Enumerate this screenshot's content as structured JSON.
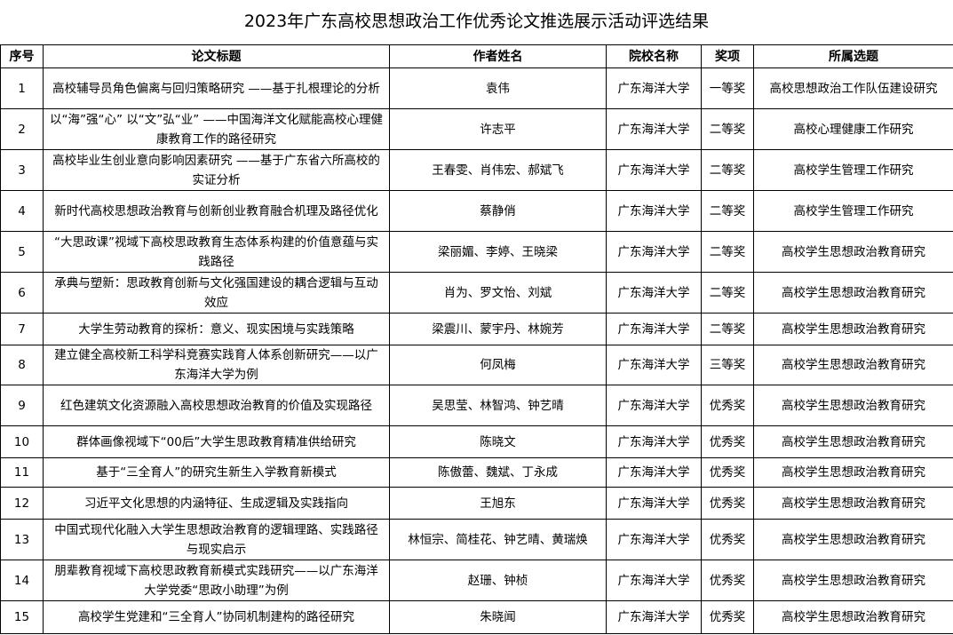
{
  "title": "2023年广东高校思想政治工作优秀论文推选展示活动评选结果",
  "headers": [
    "序号",
    "论文标题",
    "作者姓名",
    "院校名称",
    "奖项",
    "所属选题"
  ],
  "rows": [
    [
      "1",
      "高校辅导员角色偏离与回归策略研究 ——基于扎根理论的分析",
      "袁伟",
      "广东海洋大学",
      "一等奖",
      "高校思想政治工作队伍建设研究"
    ],
    [
      "2",
      "以“海”强“心” 以“文”弘“业” ——中国海洋文化赋能高校心理健康教育工作的路径研究",
      "许志平",
      "广东海洋大学",
      "二等奖",
      "高校心理健康工作研究"
    ],
    [
      "3",
      "高校毕业生创业意向影响因素研究 ——基于广东省六所高校的实证分析",
      "王春雯、肖伟宏、郝斌飞",
      "广东海洋大学",
      "二等奖",
      "高校学生管理工作研究"
    ],
    [
      "4",
      "新时代高校思想政治教育与创新创业教育融合机理及路径优化",
      "蔡静俏",
      "广东海洋大学",
      "二等奖",
      "高校学生管理工作研究"
    ],
    [
      "5",
      "“大思政课”视域下高校思政教育生态体系构建的价值意蕴与实践路径",
      "梁丽媚、李婷、王晓梁",
      "广东海洋大学",
      "二等奖",
      "高校学生思想政治教育研究"
    ],
    [
      "6",
      "承典与塑新：思政教育创新与文化强国建设的耦合逻辑与互动效应",
      "肖为、罗文怡、刘斌",
      "广东海洋大学",
      "二等奖",
      "高校学生思想政治教育研究"
    ],
    [
      "7",
      "大学生劳动教育的探析：意义、现实困境与实践策略",
      "梁震川、蒙宇丹、林婉芳",
      "广东海洋大学",
      "二等奖",
      "高校学生思想政治教育研究"
    ],
    [
      "8",
      "建立健全高校新工科学科竞赛实践育人体系创新研究——以广东海洋大学为例",
      "何凤梅",
      "广东海洋大学",
      "三等奖",
      "高校学生思想政治教育研究"
    ],
    [
      "9",
      "红色建筑文化资源融入高校思想政治教育的价值及实现路径",
      "吴思莹、林智鸿、钟艺晴",
      "广东海洋大学",
      "优秀奖",
      "高校学生思想政治教育研究"
    ],
    [
      "10",
      "群体画像视域下“00后”大学生思政教育精准供给研究",
      "陈晓文",
      "广东海洋大学",
      "优秀奖",
      "高校学生思想政治教育研究"
    ],
    [
      "11",
      "基于“三全育人”的研究生新生入学教育新模式",
      "陈傲蕾、魏斌、丁永成",
      "广东海洋大学",
      "优秀奖",
      "高校学生思想政治教育研究"
    ],
    [
      "12",
      "习近平文化思想的内涵特征、生成逻辑及实践指向",
      "王旭东",
      "广东海洋大学",
      "优秀奖",
      "高校学生思想政治教育研究"
    ],
    [
      "13",
      "中国式现代化融入大学生思想政治教育的逻辑理路、实践路径与现实启示",
      "林恒宗、简桂花、钟艺晴、黄瑞焕",
      "广东海洋大学",
      "优秀奖",
      "高校学生思想政治教育研究"
    ],
    [
      "14",
      "朋辈教育视域下高校思政教育新模式实践研究——以广东海洋大学党委“思政小助理”为例",
      "赵珊、钟桢",
      "广东海洋大学",
      "优秀奖",
      "高校学生思想政治教育研究"
    ],
    [
      "15",
      "高校学生党建和“三全育人”协同机制建构的路径研究",
      "朱晓闻",
      "广东海洋大学",
      "优秀奖",
      "高校学生思想政治教育研究"
    ]
  ]
}
